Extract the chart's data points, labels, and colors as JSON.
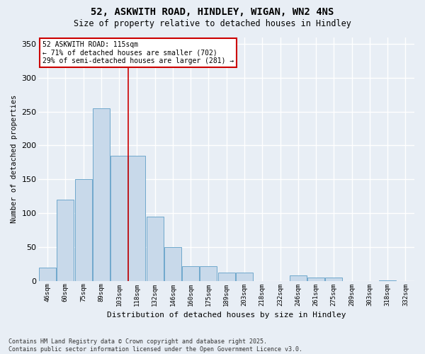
{
  "title_line1": "52, ASKWITH ROAD, HINDLEY, WIGAN, WN2 4NS",
  "title_line2": "Size of property relative to detached houses in Hindley",
  "xlabel": "Distribution of detached houses by size in Hindley",
  "ylabel": "Number of detached properties",
  "categories": [
    "46sqm",
    "60sqm",
    "75sqm",
    "89sqm",
    "103sqm",
    "118sqm",
    "132sqm",
    "146sqm",
    "160sqm",
    "175sqm",
    "189sqm",
    "203sqm",
    "218sqm",
    "232sqm",
    "246sqm",
    "261sqm",
    "275sqm",
    "289sqm",
    "303sqm",
    "318sqm",
    "332sqm"
  ],
  "values": [
    20,
    120,
    150,
    255,
    185,
    185,
    95,
    50,
    22,
    22,
    12,
    12,
    0,
    0,
    8,
    5,
    5,
    0,
    0,
    1,
    0
  ],
  "bar_color": "#c8d9ea",
  "bar_edge_color": "#6fa8cc",
  "background_color": "#e8eef5",
  "grid_color": "#ffffff",
  "vline_color": "#cc0000",
  "vline_xindex": 4.5,
  "annotation_text": "52 ASKWITH ROAD: 115sqm\n← 71% of detached houses are smaller (702)\n29% of semi-detached houses are larger (281) →",
  "annotation_box_edgecolor": "#cc0000",
  "footnote": "Contains HM Land Registry data © Crown copyright and database right 2025.\nContains public sector information licensed under the Open Government Licence v3.0.",
  "ylim": [
    0,
    360
  ],
  "yticks": [
    0,
    50,
    100,
    150,
    200,
    250,
    300,
    350
  ],
  "title_fontsize": 10,
  "subtitle_fontsize": 8.5
}
